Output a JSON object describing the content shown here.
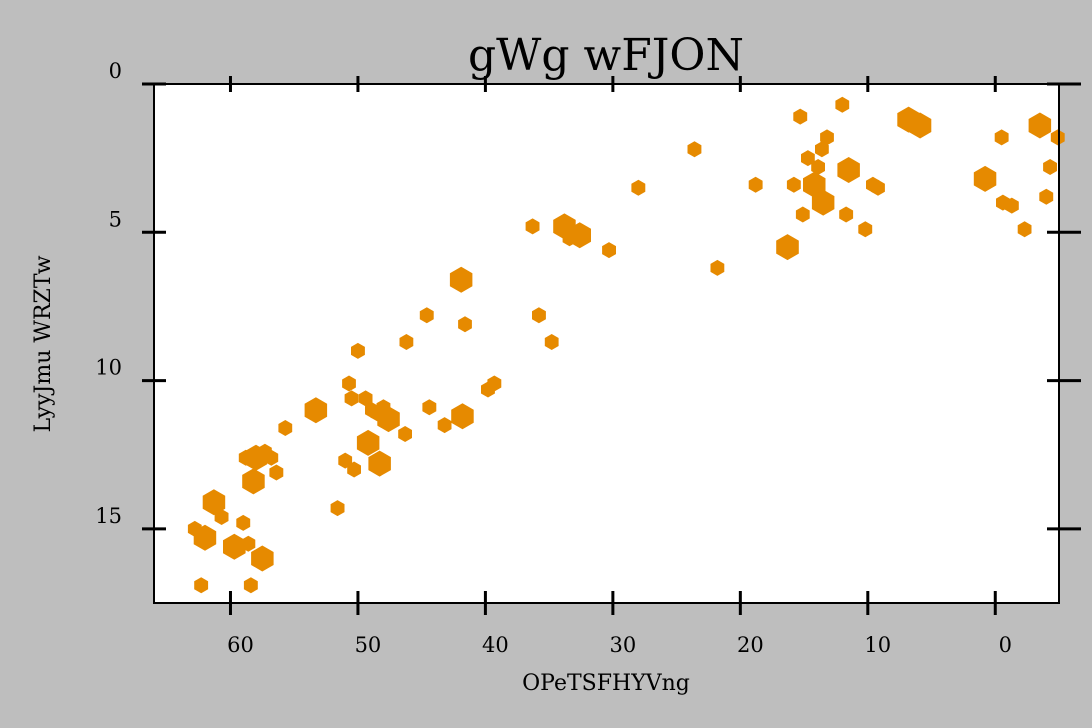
{
  "chart_data": {
    "type": "scatter",
    "title": "gWg wFJON",
    "xlabel": "OPeTSFHYVng",
    "ylabel": "LyyJmu WRZTw",
    "xlim": [
      -5,
      66
    ],
    "ylim": [
      0,
      17.5
    ],
    "x_reversed": true,
    "y_reversed": true,
    "x_ticks": [
      60,
      50,
      40,
      30,
      20,
      10,
      0
    ],
    "y_ticks": [
      0,
      5,
      10,
      15
    ],
    "marker": "hexagon",
    "marker_color": "#e68a00",
    "grid": false,
    "legend": "none",
    "points": [
      [
        62.8,
        15.0,
        1
      ],
      [
        62.0,
        15.3,
        2
      ],
      [
        61.3,
        14.1,
        2
      ],
      [
        60.7,
        14.6,
        1
      ],
      [
        62.3,
        16.9,
        1
      ],
      [
        59.7,
        15.6,
        2
      ],
      [
        59.0,
        14.8,
        1
      ],
      [
        58.6,
        15.5,
        1
      ],
      [
        58.4,
        16.9,
        1
      ],
      [
        57.5,
        16.0,
        2
      ],
      [
        58.8,
        12.6,
        1
      ],
      [
        58.2,
        13.4,
        2
      ],
      [
        58.0,
        12.6,
        2
      ],
      [
        57.3,
        12.4,
        1
      ],
      [
        56.8,
        12.6,
        1
      ],
      [
        56.4,
        13.1,
        1
      ],
      [
        55.7,
        11.6,
        1
      ],
      [
        53.3,
        11.0,
        2
      ],
      [
        51.6,
        14.3,
        1
      ],
      [
        51.0,
        12.7,
        1
      ],
      [
        50.7,
        10.1,
        1
      ],
      [
        50.5,
        10.6,
        1
      ],
      [
        50.3,
        13.0,
        1
      ],
      [
        50.0,
        9.0,
        1
      ],
      [
        49.4,
        10.6,
        1
      ],
      [
        49.2,
        12.1,
        2
      ],
      [
        48.9,
        11.0,
        1
      ],
      [
        48.5,
        11.1,
        1
      ],
      [
        48.3,
        12.8,
        2
      ],
      [
        48.0,
        10.9,
        1
      ],
      [
        47.6,
        11.3,
        2
      ],
      [
        46.3,
        11.8,
        1
      ],
      [
        46.2,
        8.7,
        1
      ],
      [
        44.6,
        7.8,
        1
      ],
      [
        44.4,
        10.9,
        1
      ],
      [
        43.2,
        11.5,
        1
      ],
      [
        41.8,
        11.2,
        2
      ],
      [
        41.6,
        8.1,
        1
      ],
      [
        41.9,
        6.6,
        2
      ],
      [
        39.8,
        10.3,
        1
      ],
      [
        39.3,
        10.1,
        1
      ],
      [
        36.3,
        4.8,
        1
      ],
      [
        35.8,
        7.8,
        1
      ],
      [
        34.8,
        8.7,
        1
      ],
      [
        33.8,
        4.8,
        2
      ],
      [
        33.4,
        5.2,
        1
      ],
      [
        32.6,
        5.1,
        2
      ],
      [
        30.3,
        5.6,
        1
      ],
      [
        28.0,
        3.5,
        1
      ],
      [
        23.6,
        2.2,
        1
      ],
      [
        21.8,
        6.2,
        1
      ],
      [
        18.8,
        3.4,
        1
      ],
      [
        16.3,
        5.5,
        2
      ],
      [
        15.8,
        3.4,
        1
      ],
      [
        15.3,
        1.1,
        1
      ],
      [
        15.1,
        4.4,
        1
      ],
      [
        14.7,
        2.5,
        1
      ],
      [
        14.2,
        3.4,
        2
      ],
      [
        13.9,
        2.8,
        1
      ],
      [
        13.5,
        4.0,
        2
      ],
      [
        13.6,
        2.2,
        1
      ],
      [
        13.2,
        1.8,
        1
      ],
      [
        12.0,
        0.7,
        1
      ],
      [
        11.7,
        4.4,
        1
      ],
      [
        11.5,
        2.9,
        2
      ],
      [
        10.2,
        4.9,
        1
      ],
      [
        9.6,
        3.4,
        1
      ],
      [
        9.2,
        3.5,
        1
      ],
      [
        6.8,
        1.2,
        2
      ],
      [
        5.9,
        1.4,
        2
      ],
      [
        0.8,
        3.2,
        2
      ],
      [
        -0.5,
        1.8,
        1
      ],
      [
        -0.6,
        4.0,
        1
      ],
      [
        -1.3,
        4.1,
        1
      ],
      [
        -2.3,
        4.9,
        1
      ],
      [
        -3.5,
        1.4,
        2
      ],
      [
        -4.0,
        3.8,
        1
      ],
      [
        -4.3,
        2.8,
        1
      ],
      [
        -4.9,
        1.8,
        1
      ]
    ]
  }
}
